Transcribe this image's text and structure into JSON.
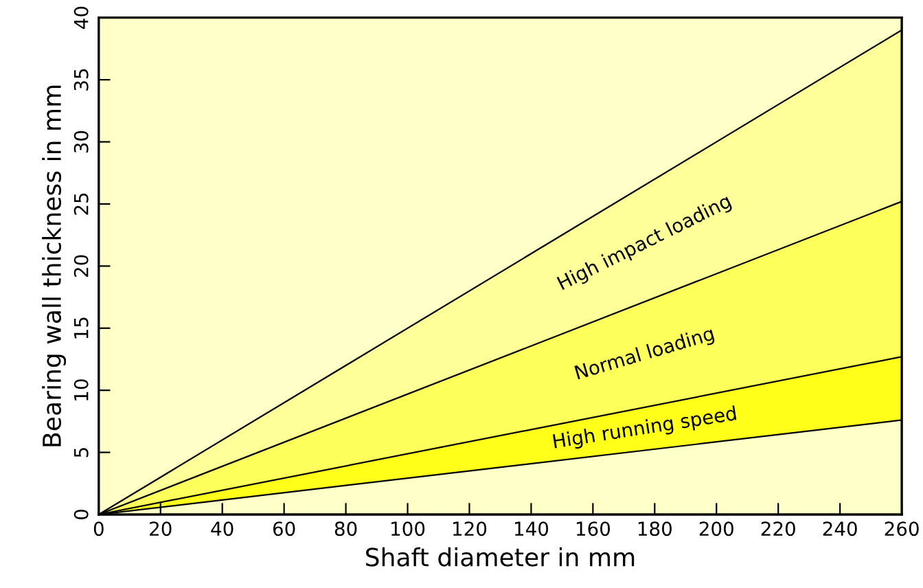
{
  "chart_data": {
    "type": "area",
    "stacked": true,
    "xlabel": "Shaft diameter in mm",
    "ylabel": "Bearing wall thickness in mm",
    "x": [
      0,
      260
    ],
    "series": [
      {
        "color": "#ffffc8",
        "values": [
          0,
          7.6
        ]
      },
      {
        "color": "#ffff1a",
        "values": [
          0,
          5.1
        ]
      },
      {
        "color": "#ffff5c",
        "values": [
          0,
          12.5
        ]
      },
      {
        "color": "#ffff99",
        "values": [
          0,
          13.8
        ]
      }
    ],
    "xlim": [
      0,
      260
    ],
    "xticks": [
      0,
      20,
      40,
      60,
      80,
      100,
      120,
      140,
      160,
      180,
      200,
      220,
      240,
      260
    ],
    "ylim": [
      0,
      40
    ],
    "yticks": [
      0,
      5,
      10,
      15,
      20,
      25,
      30,
      35,
      40
    ],
    "annotations": [
      "High impact loading",
      "Normal loading",
      "High running speed"
    ]
  }
}
